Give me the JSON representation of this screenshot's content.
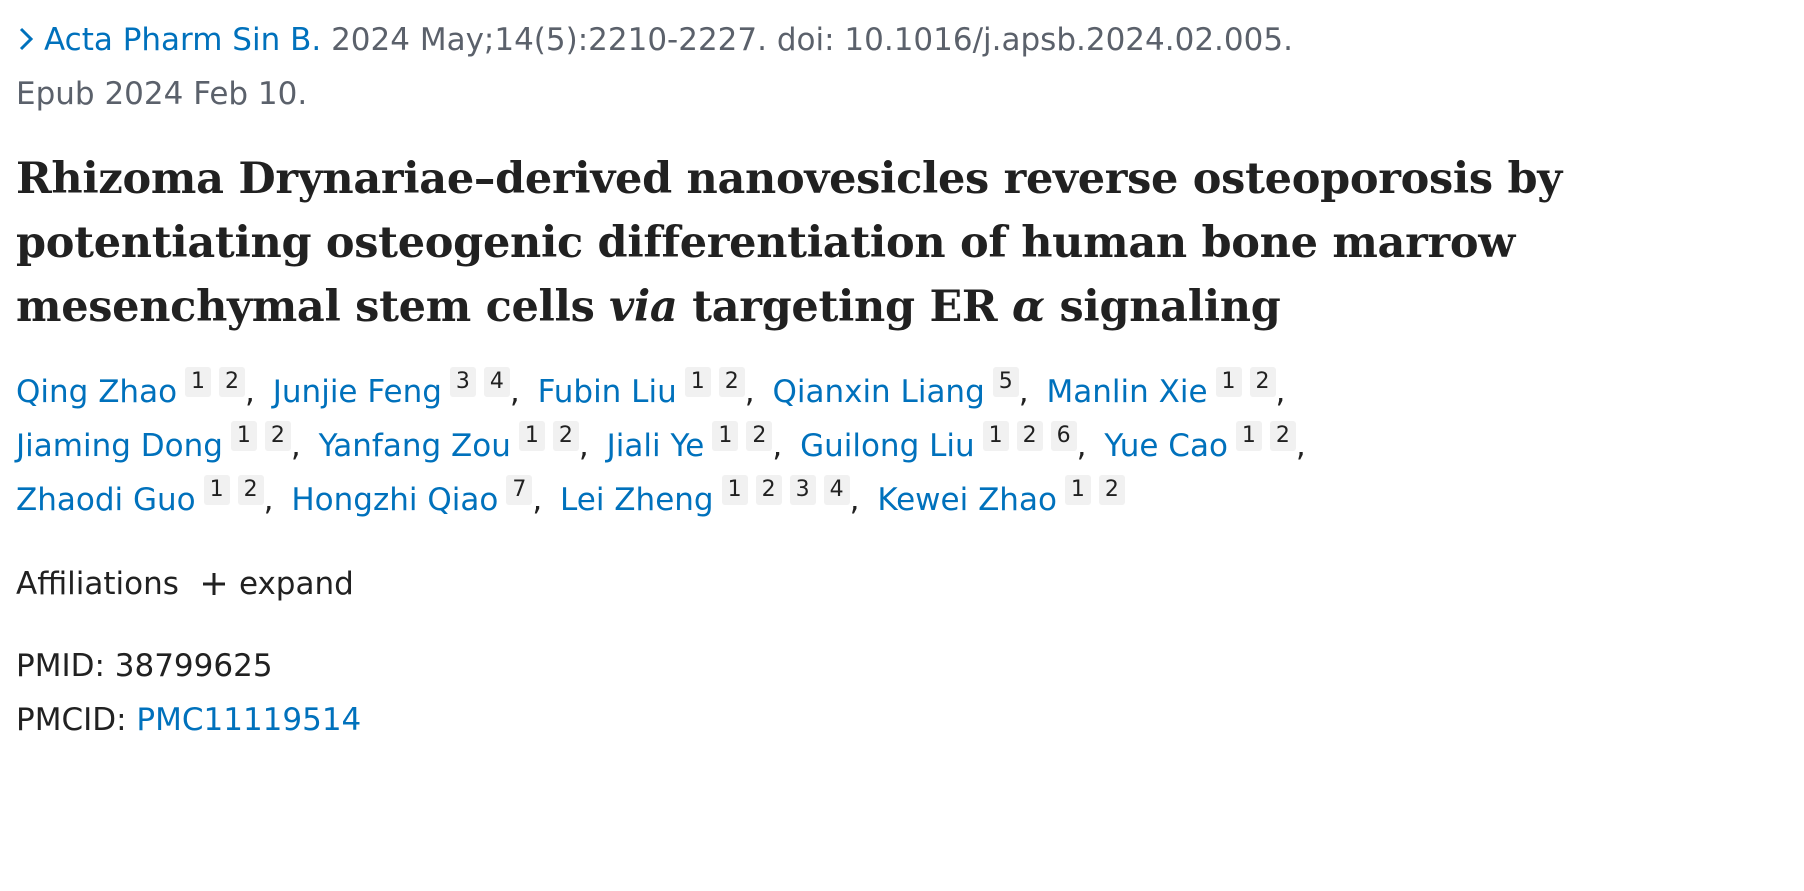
{
  "citation": {
    "journal": "Acta Pharm Sin B.",
    "details": "2024 May;14(5):2210-2227. doi: 10.1016/j.apsb.2024.02.005.",
    "epub": "Epub 2024 Feb 10."
  },
  "title_parts": [
    "Rhizoma Drynariae–derived nanovesicles reverse osteoporosis by potentiating osteogenic differentiation of human bone marrow mesenchymal stem cells ",
    "via",
    " targeting ER ",
    "α",
    " signaling"
  ],
  "authors": [
    {
      "name": "Qing Zhao",
      "affiliations": [
        1,
        2
      ]
    },
    {
      "name": "Junjie Feng",
      "affiliations": [
        3,
        4
      ]
    },
    {
      "name": "Fubin Liu",
      "affiliations": [
        1,
        2
      ]
    },
    {
      "name": "Qianxin Liang",
      "affiliations": [
        5
      ]
    },
    {
      "name": "Manlin Xie",
      "affiliations": [
        1,
        2
      ]
    },
    {
      "name": "Jiaming Dong",
      "affiliations": [
        1,
        2
      ]
    },
    {
      "name": "Yanfang Zou",
      "affiliations": [
        1,
        2
      ]
    },
    {
      "name": "Jiali Ye",
      "affiliations": [
        1,
        2
      ]
    },
    {
      "name": "Guilong Liu",
      "affiliations": [
        1,
        2,
        6
      ]
    },
    {
      "name": "Yue Cao",
      "affiliations": [
        1,
        2
      ]
    },
    {
      "name": "Zhaodi Guo",
      "affiliations": [
        1,
        2
      ]
    },
    {
      "name": "Hongzhi Qiao",
      "affiliations": [
        7
      ]
    },
    {
      "name": "Lei Zheng",
      "affiliations": [
        1,
        2,
        3,
        4
      ]
    },
    {
      "name": "Kewei Zhao",
      "affiliations": [
        1,
        2
      ]
    }
  ],
  "affiliations": {
    "label": "Affiliations",
    "toggle": "expand"
  },
  "identifiers": {
    "pmid_label": "PMID:",
    "pmid": "38799625",
    "pmcid_label": "PMCID:",
    "pmcid": "PMC11119514"
  }
}
